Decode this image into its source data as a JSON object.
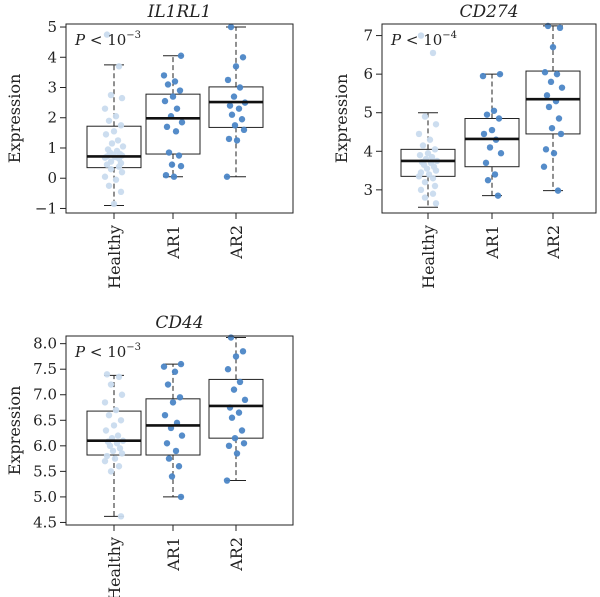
{
  "chart_data": [
    {
      "type": "boxplot",
      "title": "IL1RL1",
      "ylabel": "Expression",
      "pvalue": {
        "label": "P",
        "op": " < 10",
        "exp": "−3"
      },
      "ylim": [
        -1.15,
        5.1
      ],
      "yticks": [
        -1,
        0,
        1,
        2,
        3,
        4,
        5
      ],
      "ytick_labels": [
        "−1",
        "0",
        "1",
        "2",
        "3",
        "4",
        "5"
      ],
      "categories": [
        "Healthy",
        "AR1",
        "AR2"
      ],
      "colors": [
        "#c9dbee",
        "#4c86c6",
        "#4c86c6"
      ],
      "boxes": [
        {
          "min": -0.9,
          "q1": 0.35,
          "median": 0.72,
          "q3": 1.72,
          "max": 3.75
        },
        {
          "min": 0.05,
          "q1": 0.8,
          "median": 1.98,
          "q3": 2.78,
          "max": 4.05
        },
        {
          "min": 0.05,
          "q1": 1.68,
          "median": 2.52,
          "q3": 3.02,
          "max": 5.0
        }
      ],
      "points": [
        [
          4.75,
          3.7,
          2.75,
          2.65,
          2.3,
          2.05,
          1.9,
          1.75,
          1.55,
          1.45,
          1.25,
          1.15,
          1.05,
          0.95,
          0.9,
          0.85,
          0.8,
          0.78,
          0.75,
          0.72,
          0.7,
          0.68,
          0.65,
          0.55,
          0.5,
          0.45,
          0.38,
          0.3,
          0.2,
          0.05,
          -0.05,
          -0.25,
          -0.45,
          -0.85
        ],
        [
          4.05,
          3.4,
          3.2,
          3.1,
          2.9,
          2.7,
          2.55,
          2.3,
          2.05,
          1.85,
          1.7,
          1.55,
          0.85,
          0.75,
          0.45,
          0.4,
          0.1,
          0.05
        ],
        [
          5.0,
          4.0,
          3.7,
          3.25,
          3.0,
          2.7,
          2.5,
          2.4,
          2.3,
          2.1,
          1.95,
          1.75,
          1.6,
          1.3,
          1.25,
          0.05
        ]
      ]
    },
    {
      "type": "boxplot",
      "title": "CD274",
      "ylabel": "Expression",
      "pvalue": {
        "label": "P",
        "op": " < 10",
        "exp": "−4"
      },
      "ylim": [
        2.4,
        7.3
      ],
      "yticks": [
        3,
        4,
        5,
        6,
        7
      ],
      "ytick_labels": [
        "3",
        "4",
        "5",
        "6",
        "7"
      ],
      "categories": [
        "Healthy",
        "AR1",
        "AR2"
      ],
      "colors": [
        "#c9dbee",
        "#4c86c6",
        "#4c86c6"
      ],
      "boxes": [
        {
          "min": 2.55,
          "q1": 3.35,
          "median": 3.75,
          "q3": 4.05,
          "max": 5.0
        },
        {
          "min": 2.85,
          "q1": 3.6,
          "median": 4.32,
          "q3": 4.85,
          "max": 6.0
        },
        {
          "min": 2.98,
          "q1": 4.45,
          "median": 5.35,
          "q3": 6.08,
          "max": 7.25
        }
      ],
      "points": [
        [
          7.0,
          6.55,
          4.9,
          4.7,
          4.45,
          4.3,
          4.15,
          4.05,
          3.95,
          3.9,
          3.85,
          3.8,
          3.75,
          3.72,
          3.7,
          3.65,
          3.6,
          3.55,
          3.5,
          3.45,
          3.4,
          3.35,
          3.3,
          3.2,
          3.1,
          3.0,
          2.9,
          2.8,
          2.65
        ],
        [
          6.0,
          5.95,
          5.05,
          4.95,
          4.85,
          4.55,
          4.45,
          4.3,
          4.1,
          3.95,
          3.7,
          3.4,
          3.25,
          2.85
        ],
        [
          7.25,
          7.2,
          6.7,
          6.05,
          6.0,
          5.8,
          5.65,
          5.45,
          5.3,
          5.15,
          4.85,
          4.6,
          4.45,
          4.05,
          3.95,
          3.6,
          2.98
        ]
      ]
    },
    {
      "type": "boxplot",
      "title": "CD44",
      "ylabel": "Expression",
      "pvalue": {
        "label": "P",
        "op": " < 10",
        "exp": "−3"
      },
      "ylim": [
        4.45,
        8.15
      ],
      "yticks": [
        4.5,
        5.0,
        5.5,
        6.0,
        6.5,
        7.0,
        7.5,
        8.0
      ],
      "ytick_labels": [
        "4.5",
        "5.0",
        "5.5",
        "6.0",
        "6.5",
        "7.0",
        "7.5",
        "8.0"
      ],
      "categories": [
        "Healthy",
        "AR1",
        "AR2"
      ],
      "colors": [
        "#c9dbee",
        "#4c86c6",
        "#4c86c6"
      ],
      "boxes": [
        {
          "min": 4.62,
          "q1": 5.82,
          "median": 6.1,
          "q3": 6.68,
          "max": 7.38
        },
        {
          "min": 5.0,
          "q1": 5.82,
          "median": 6.4,
          "q3": 6.92,
          "max": 7.6
        },
        {
          "min": 5.32,
          "q1": 6.15,
          "median": 6.78,
          "q3": 7.3,
          "max": 8.12
        }
      ],
      "points": [
        [
          7.4,
          7.35,
          7.2,
          7.0,
          6.85,
          6.7,
          6.6,
          6.5,
          6.4,
          6.3,
          6.2,
          6.15,
          6.1,
          6.08,
          6.05,
          6.0,
          5.95,
          5.9,
          5.85,
          5.8,
          5.75,
          5.7,
          5.6,
          5.5,
          4.62
        ],
        [
          7.6,
          7.55,
          7.45,
          7.2,
          6.95,
          6.85,
          6.6,
          6.45,
          6.35,
          6.2,
          6.05,
          5.9,
          5.75,
          5.6,
          5.4,
          5.0
        ],
        [
          8.12,
          7.85,
          7.75,
          7.5,
          7.25,
          7.1,
          6.9,
          6.75,
          6.65,
          6.55,
          6.3,
          6.15,
          6.05,
          6.0,
          5.85,
          5.32
        ]
      ]
    }
  ]
}
